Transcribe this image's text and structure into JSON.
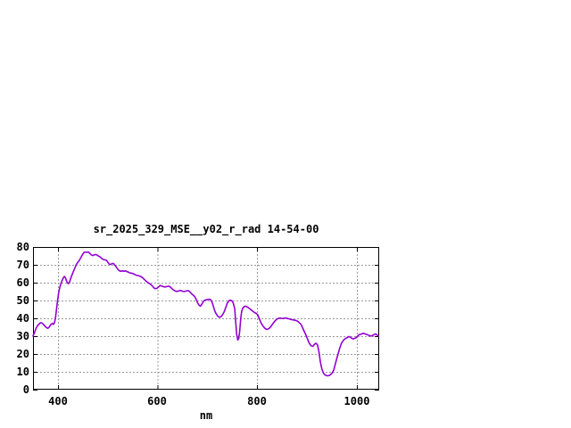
{
  "window": {
    "background": "#ffffff"
  },
  "chart": {
    "title": "sr_2025_329_MSE__y02_r_rad 14-54-00",
    "xlabel": "nm",
    "x_tick_labels": [
      "400",
      "600",
      "800",
      "1000"
    ],
    "y_tick_labels": [
      "80",
      "70",
      "60",
      "50",
      "40",
      "30",
      "20",
      "10",
      "0"
    ],
    "colors": {
      "line": "#9400d3",
      "grid": "#999999",
      "axis": "#000000",
      "text": "#000000",
      "background": "#ffffff"
    }
  },
  "chart_data": {
    "type": "line",
    "title": "sr_2025_329_MSE__y02_r_rad 14-54-00",
    "xlabel": "nm",
    "ylabel": "",
    "xlim": [
      350,
      1045
    ],
    "ylim": [
      0,
      80
    ],
    "x_ticks": [
      400,
      600,
      800,
      1000
    ],
    "y_ticks": [
      0,
      10,
      20,
      30,
      40,
      50,
      60,
      70,
      80
    ],
    "grid": true,
    "legend": false,
    "series": [
      {
        "name": "sr_2025_329_MSE__y02_r_rad",
        "color": "#9400d3",
        "x": [
          350,
          353,
          356,
          359,
          362,
          365,
          368,
          371,
          374,
          377,
          380,
          383,
          386,
          389,
          391,
          393,
          395,
          397,
          399,
          401,
          403,
          405,
          407,
          409,
          411,
          413,
          415,
          417,
          419,
          421,
          423,
          425,
          427,
          429,
          431,
          434,
          437,
          440,
          443,
          446,
          449,
          452,
          455,
          458,
          461,
          464,
          467,
          470,
          473,
          476,
          479,
          482,
          485,
          488,
          491,
          494,
          497,
          500,
          503,
          506,
          509,
          512,
          515,
          518,
          521,
          524,
          527,
          530,
          533,
          536,
          539,
          542,
          545,
          548,
          551,
          554,
          557,
          560,
          563,
          566,
          569,
          572,
          575,
          578,
          581,
          584,
          587,
          590,
          593,
          596,
          599,
          602,
          605,
          608,
          611,
          614,
          617,
          620,
          623,
          626,
          629,
          632,
          635,
          638,
          641,
          644,
          647,
          650,
          653,
          656,
          659,
          662,
          665,
          668,
          671,
          674,
          677,
          680,
          683,
          686,
          689,
          692,
          695,
          698,
          701,
          704,
          707,
          710,
          713,
          716,
          719,
          722,
          725,
          728,
          731,
          734,
          737,
          740,
          743,
          746,
          749,
          752,
          755,
          757,
          759,
          761,
          763,
          765,
          767,
          769,
          771,
          774,
          777,
          780,
          783,
          786,
          789,
          792,
          795,
          798,
          801,
          804,
          807,
          810,
          813,
          816,
          819,
          822,
          825,
          828,
          831,
          834,
          837,
          840,
          843,
          846,
          849,
          852,
          855,
          858,
          861,
          864,
          867,
          870,
          873,
          876,
          879,
          882,
          885,
          888,
          891,
          894,
          897,
          900,
          903,
          906,
          909,
          912,
          915,
          918,
          921,
          924,
          927,
          930,
          933,
          936,
          939,
          942,
          945,
          948,
          951,
          954,
          957,
          960,
          963,
          966,
          969,
          972,
          975,
          978,
          981,
          984,
          987,
          990,
          993,
          996,
          999,
          1002,
          1005,
          1008,
          1011,
          1014,
          1017,
          1020,
          1023,
          1026,
          1029,
          1032,
          1035,
          1038,
          1041,
          1044
        ],
        "y": [
          30.1,
          32,
          34.3,
          35.8,
          36.8,
          37.5,
          37.4,
          36.6,
          35.6,
          34.8,
          34.4,
          35.2,
          36.6,
          37.2,
          36.6,
          37.4,
          40,
          44.5,
          49.5,
          53.5,
          56.5,
          58.5,
          60.2,
          61.5,
          62.8,
          63.5,
          62.8,
          61.2,
          60,
          59.4,
          60.2,
          61.8,
          63.4,
          64.8,
          66.2,
          68.2,
          70.2,
          71.4,
          72.5,
          74,
          75.6,
          76.8,
          77.2,
          77,
          77.2,
          76.4,
          75.6,
          75.2,
          75.6,
          75.8,
          75.4,
          74.8,
          74.4,
          73.6,
          73,
          72.8,
          72.6,
          71.6,
          70.4,
          70.2,
          70.8,
          70.6,
          69.6,
          68.4,
          67.2,
          66.6,
          66.4,
          66.6,
          66.4,
          66.6,
          66.2,
          65.8,
          65.4,
          65.3,
          65.1,
          64.6,
          64.2,
          64,
          63.8,
          63.5,
          63,
          62.2,
          61.4,
          60.6,
          60,
          59.4,
          58.9,
          58,
          57,
          56.6,
          56.9,
          57.6,
          58.4,
          58.2,
          57.8,
          57.6,
          57.7,
          57.9,
          58,
          57.5,
          56.6,
          55.9,
          55.4,
          55.1,
          55.2,
          55.5,
          55.6,
          55.2,
          55,
          55.2,
          55.4,
          55.5,
          54.8,
          53.9,
          53.1,
          52.4,
          51,
          49,
          47.5,
          46.8,
          48,
          49.4,
          50.2,
          50.4,
          50.6,
          50.7,
          50.4,
          48.6,
          45.8,
          43.4,
          42,
          40.9,
          40.6,
          41,
          42.2,
          43.8,
          46.2,
          48.4,
          49.8,
          50.2,
          49.9,
          48.6,
          45.4,
          38,
          31,
          27.9,
          28.6,
          33,
          39.8,
          44,
          45.6,
          46.6,
          46.8,
          46.4,
          45.8,
          45.2,
          44.5,
          43.8,
          43.2,
          42.8,
          42,
          40,
          38,
          36.4,
          35.2,
          34.3,
          33.8,
          34,
          34.6,
          35.6,
          36.8,
          37.9,
          38.9,
          39.6,
          40,
          40.2,
          40,
          39.9,
          40.1,
          40.2,
          39.9,
          39.7,
          39.5,
          39.2,
          39.1,
          38.9,
          38.7,
          38.2,
          37.4,
          36.6,
          34.9,
          33,
          31.2,
          29.2,
          27,
          25.4,
          24.5,
          24.3,
          25.4,
          26,
          25.2,
          21.5,
          15.5,
          11.5,
          9.4,
          8.3,
          7.9,
          7.8,
          8,
          8.6,
          9.4,
          11.2,
          14.5,
          17.5,
          20.5,
          23.5,
          25.8,
          27.2,
          28.2,
          28.8,
          29.2,
          29.8,
          29.4,
          28.8,
          28.4,
          28.8,
          29.2,
          30.2,
          30.9,
          31,
          31.4,
          31.6,
          31.2,
          31,
          30.6,
          30.2,
          30.1,
          30.4,
          31,
          31.2,
          30.6,
          30
        ]
      }
    ]
  },
  "layout_note": ""
}
